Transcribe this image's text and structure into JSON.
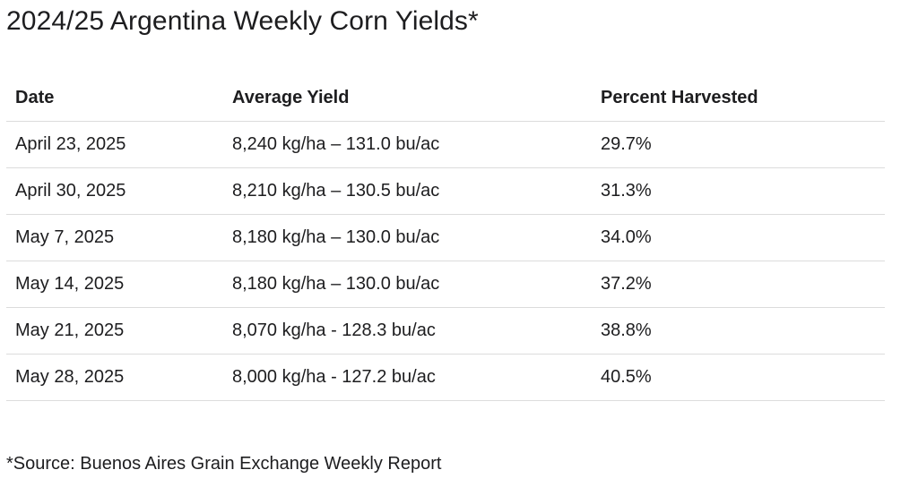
{
  "title": "2024/25 Argentina Weekly Corn Yields*",
  "table": {
    "headers": [
      "Date",
      "Average Yield",
      "Percent Harvested"
    ],
    "rows": [
      [
        "April 23, 2025",
        "8,240 kg/ha – 131.0 bu/ac",
        "29.7%"
      ],
      [
        "April 30, 2025",
        "8,210 kg/ha – 130.5 bu/ac",
        "31.3%"
      ],
      [
        "May 7, 2025",
        "8,180 kg/ha – 130.0 bu/ac",
        "34.0%"
      ],
      [
        "May 14, 2025",
        "8,180 kg/ha – 130.0 bu/ac",
        "37.2%"
      ],
      [
        "May 21, 2025",
        "8,070 kg/ha - 128.3 bu/ac",
        "38.8%"
      ],
      [
        "May 28, 2025",
        "8,000 kg/ha - 127.2 bu/ac",
        "40.5%"
      ]
    ]
  },
  "footnote": "*Source: Buenos Aires Grain Exchange Weekly Report"
}
